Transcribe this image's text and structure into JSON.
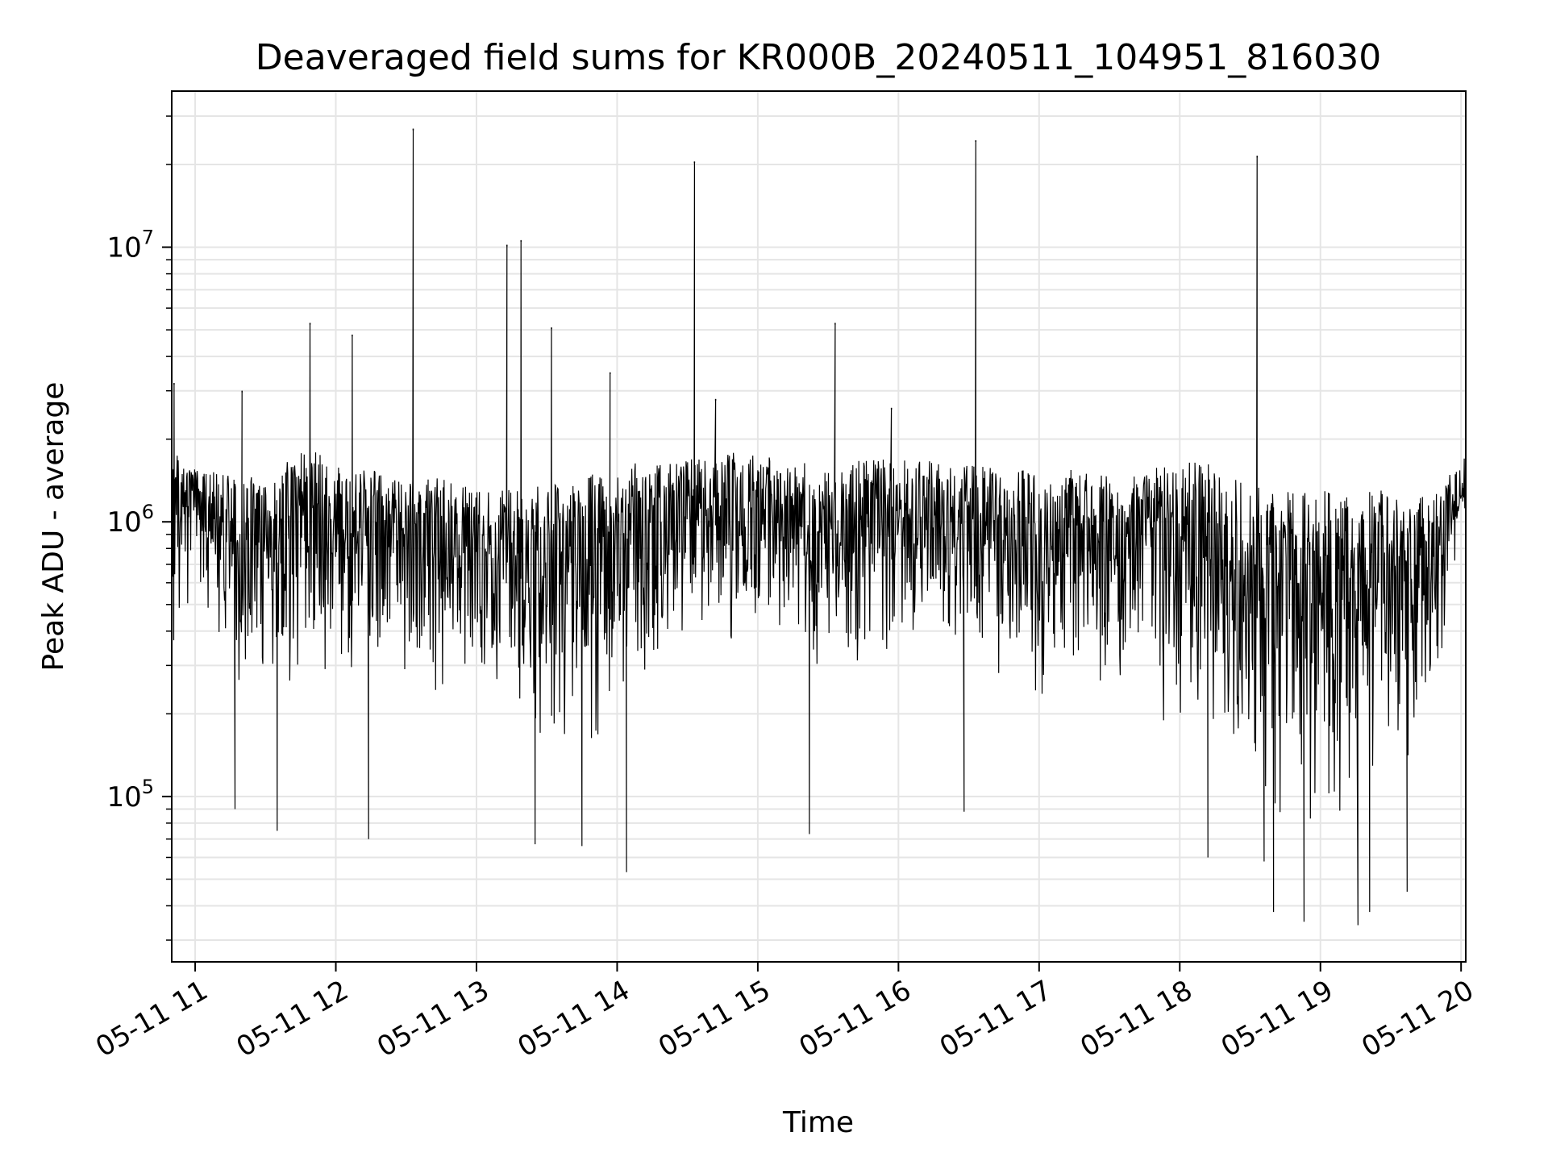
{
  "chart_data": {
    "type": "line",
    "title": "Deaveraged field sums for KR000B_20240511_104951_816030",
    "xlabel": "Time",
    "ylabel": "Peak ADU - average",
    "yscale": "log",
    "grid": true,
    "line_color": "#000000",
    "grid_color": "#e5e5e5",
    "xlim": [
      "2024-05-11 10:50",
      "2024-05-11 20:02"
    ],
    "ylim": [
      25000,
      37000000
    ],
    "x_ticks": [
      {
        "value": "2024-05-11 11:00",
        "label": "05-11 11"
      },
      {
        "value": "2024-05-11 12:00",
        "label": "05-11 12"
      },
      {
        "value": "2024-05-11 13:00",
        "label": "05-11 13"
      },
      {
        "value": "2024-05-11 14:00",
        "label": "05-11 14"
      },
      {
        "value": "2024-05-11 15:00",
        "label": "05-11 15"
      },
      {
        "value": "2024-05-11 16:00",
        "label": "05-11 16"
      },
      {
        "value": "2024-05-11 17:00",
        "label": "05-11 17"
      },
      {
        "value": "2024-05-11 18:00",
        "label": "05-11 18"
      },
      {
        "value": "2024-05-11 19:00",
        "label": "05-11 19"
      },
      {
        "value": "2024-05-11 20:00",
        "label": "05-11 20"
      }
    ],
    "y_ticks": [
      {
        "value": 100000,
        "base": "10",
        "exp": "5"
      },
      {
        "value": 1000000,
        "base": "10",
        "exp": "6"
      },
      {
        "value": 10000000,
        "base": "10",
        "exp": "7"
      }
    ],
    "x": [
      "2024-05-11 10:50",
      "2024-05-11 11:00",
      "2024-05-11 11:10",
      "2024-05-11 11:20",
      "2024-05-11 11:30",
      "2024-05-11 11:40",
      "2024-05-11 11:50",
      "2024-05-11 12:00",
      "2024-05-11 12:10",
      "2024-05-11 12:20",
      "2024-05-11 12:30",
      "2024-05-11 12:40",
      "2024-05-11 12:50",
      "2024-05-11 13:00",
      "2024-05-11 13:10",
      "2024-05-11 13:20",
      "2024-05-11 13:30",
      "2024-05-11 13:40",
      "2024-05-11 13:50",
      "2024-05-11 14:00",
      "2024-05-11 14:10",
      "2024-05-11 14:20",
      "2024-05-11 14:30",
      "2024-05-11 14:40",
      "2024-05-11 14:50",
      "2024-05-11 15:00",
      "2024-05-11 15:10",
      "2024-05-11 15:20",
      "2024-05-11 15:30",
      "2024-05-11 15:40",
      "2024-05-11 15:50",
      "2024-05-11 16:00",
      "2024-05-11 16:10",
      "2024-05-11 16:20",
      "2024-05-11 16:30",
      "2024-05-11 16:40",
      "2024-05-11 16:50",
      "2024-05-11 17:00",
      "2024-05-11 17:10",
      "2024-05-11 17:20",
      "2024-05-11 17:30",
      "2024-05-11 17:40",
      "2024-05-11 17:50",
      "2024-05-11 18:00",
      "2024-05-11 18:10",
      "2024-05-11 18:20",
      "2024-05-11 18:30",
      "2024-05-11 18:40",
      "2024-05-11 18:50",
      "2024-05-11 19:00",
      "2024-05-11 19:10",
      "2024-05-11 19:20",
      "2024-05-11 19:30",
      "2024-05-11 19:40",
      "2024-05-11 19:50",
      "2024-05-11 20:00"
    ],
    "series": [
      {
        "name": "",
        "band_high": [
          1800000,
          1600000,
          1500000,
          1500000,
          1400000,
          1700000,
          1900000,
          1600000,
          1600000,
          1500000,
          1400000,
          1500000,
          1400000,
          1300000,
          1400000,
          1300000,
          1400000,
          1400000,
          1500000,
          1600000,
          1700000,
          1700000,
          1700000,
          1700000,
          1800000,
          1800000,
          1700000,
          1700000,
          1600000,
          1700000,
          1700000,
          1700000,
          1700000,
          1600000,
          1600000,
          1600000,
          1600000,
          1500000,
          1600000,
          1500000,
          1500000,
          1500000,
          1600000,
          1700000,
          1700000,
          1500000,
          1400000,
          1300000,
          1300000,
          1300000,
          1300000,
          1300000,
          1300000,
          1200000,
          1300000,
          1700000
        ],
        "band_low": [
          300000,
          500000,
          300000,
          200000,
          250000,
          200000,
          250000,
          200000,
          300000,
          250000,
          250000,
          250000,
          200000,
          200000,
          150000,
          120000,
          130000,
          120000,
          120000,
          130000,
          200000,
          250000,
          300000,
          300000,
          300000,
          300000,
          300000,
          250000,
          250000,
          250000,
          250000,
          250000,
          250000,
          250000,
          250000,
          250000,
          250000,
          220000,
          200000,
          200000,
          200000,
          180000,
          180000,
          160000,
          150000,
          120000,
          80000,
          70000,
          60000,
          60000,
          60000,
          60000,
          80000,
          100000,
          200000,
          900000
        ],
        "spikes": [
          {
            "x": "2024-05-11 10:51",
            "y": 3200000
          },
          {
            "x": "2024-05-11 11:20",
            "y": 3000000
          },
          {
            "x": "2024-05-11 11:49",
            "y": 5300000
          },
          {
            "x": "2024-05-11 12:07",
            "y": 4800000
          },
          {
            "x": "2024-05-11 12:33",
            "y": 27000000
          },
          {
            "x": "2024-05-11 13:13",
            "y": 10200000
          },
          {
            "x": "2024-05-11 13:19",
            "y": 10600000
          },
          {
            "x": "2024-05-11 13:32",
            "y": 5100000
          },
          {
            "x": "2024-05-11 13:57",
            "y": 3500000
          },
          {
            "x": "2024-05-11 14:33",
            "y": 20500000
          },
          {
            "x": "2024-05-11 14:42",
            "y": 2800000
          },
          {
            "x": "2024-05-11 15:33",
            "y": 5300000
          },
          {
            "x": "2024-05-11 15:57",
            "y": 2600000
          },
          {
            "x": "2024-05-11 16:33",
            "y": 24500000
          },
          {
            "x": "2024-05-11 18:33",
            "y": 21500000
          }
        ],
        "dips": [
          {
            "x": "2024-05-11 11:17",
            "y": 90000
          },
          {
            "x": "2024-05-11 11:35",
            "y": 75000
          },
          {
            "x": "2024-05-11 12:14",
            "y": 70000
          },
          {
            "x": "2024-05-11 13:25",
            "y": 67000
          },
          {
            "x": "2024-05-11 13:45",
            "y": 66000
          },
          {
            "x": "2024-05-11 14:04",
            "y": 53000
          },
          {
            "x": "2024-05-11 15:22",
            "y": 73000
          },
          {
            "x": "2024-05-11 16:28",
            "y": 88000
          },
          {
            "x": "2024-05-11 18:12",
            "y": 60000
          },
          {
            "x": "2024-05-11 18:36",
            "y": 58000
          },
          {
            "x": "2024-05-11 18:40",
            "y": 38000
          },
          {
            "x": "2024-05-11 18:53",
            "y": 35000
          },
          {
            "x": "2024-05-11 19:16",
            "y": 34000
          },
          {
            "x": "2024-05-11 19:21",
            "y": 38000
          },
          {
            "x": "2024-05-11 19:37",
            "y": 45000
          }
        ]
      }
    ]
  }
}
